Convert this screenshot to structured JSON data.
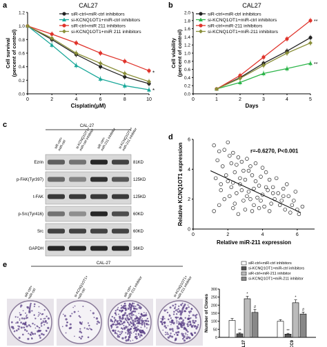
{
  "panels": {
    "a": {
      "letter": "a",
      "title": "CAL27"
    },
    "b": {
      "letter": "b",
      "title": "CAL27"
    },
    "c": {
      "letter": "c",
      "title": "CAL-27"
    },
    "d": {
      "letter": "d"
    },
    "e": {
      "letter": "e",
      "title": "CAL-27"
    }
  },
  "chart_data": [
    {
      "type": "line",
      "title": "CAL27",
      "xlabel": "Cisplatin(μM)",
      "ylabel": "Cell survival\n(percent of control)",
      "x": [
        0,
        2,
        4,
        6,
        8,
        10
      ],
      "xlim": [
        0,
        10
      ],
      "ylim": [
        0,
        1.2
      ],
      "xticks": [
        "0",
        "2",
        "4",
        "6",
        "8",
        "10"
      ],
      "yticks": [
        "0.0",
        "0.2",
        "0.4",
        "0.6",
        "0.8",
        "1.0",
        "1.2"
      ],
      "legend_position": "top-right",
      "series": [
        {
          "name": "siR-ctrl+miR-ctrl inhibitors",
          "color": "#222222",
          "marker": "circle",
          "values": [
            1.0,
            0.8,
            0.58,
            0.4,
            0.25,
            0.15
          ]
        },
        {
          "name": "si-KCNQ1OT1+miR-ctrl inhibitors",
          "color": "#1aa89a",
          "marker": "triangle",
          "values": [
            1.0,
            0.72,
            0.42,
            0.22,
            0.12,
            0.06
          ]
        },
        {
          "name": "siR-ctrl+miR 211 inhibitors",
          "color": "#e0342c",
          "marker": "circle",
          "values": [
            1.0,
            0.88,
            0.75,
            0.6,
            0.48,
            0.34
          ]
        },
        {
          "name": "si-KCNQ1OT1+miR 211 inhibitors",
          "color": "#8a8f3a",
          "marker": "diamond",
          "values": [
            1.0,
            0.82,
            0.6,
            0.45,
            0.3,
            0.18
          ]
        }
      ],
      "annotations": [
        "*",
        "*"
      ]
    },
    {
      "type": "line",
      "title": "CAL27",
      "xlabel": "Days",
      "ylabel": "Cell viability\n(percent of control)",
      "x": [
        1,
        2,
        3,
        4,
        5
      ],
      "xlim": [
        0,
        5
      ],
      "ylim": [
        0,
        2.0
      ],
      "xticks": [
        "0",
        "1",
        "2",
        "3",
        "4",
        "5"
      ],
      "yticks": [
        "0.0",
        "0.2",
        "0.4",
        "0.6",
        "0.8",
        "1.0",
        "1.2",
        "1.4",
        "1.6",
        "1.8",
        "2.0"
      ],
      "legend_position": "top-left",
      "series": [
        {
          "name": "siR-ctrl+miR-ctrl inhibitors",
          "color": "#222222",
          "marker": "circle",
          "values": [
            0.12,
            0.4,
            0.75,
            1.05,
            1.38
          ]
        },
        {
          "name": "si-KCNQ1OT1+miR-ctrl inhibitors",
          "color": "#2db54a",
          "marker": "triangle",
          "values": [
            0.12,
            0.28,
            0.5,
            0.62,
            0.75
          ]
        },
        {
          "name": "siR-ctrl+miR-211 inhibitors",
          "color": "#e0342c",
          "marker": "circle",
          "values": [
            0.12,
            0.45,
            0.9,
            1.35,
            1.8
          ]
        },
        {
          "name": "si-KCNQ1OT1+miR-211 inhibitors",
          "color": "#8a8f3a",
          "marker": "diamond",
          "values": [
            0.12,
            0.38,
            0.7,
            1.0,
            1.25
          ]
        }
      ],
      "annotations": [
        "**",
        "**"
      ]
    },
    {
      "type": "scatter",
      "xlabel": "Relative miR-211 expression",
      "ylabel": "Relative KCNQ1OT1 expression",
      "xlim": [
        0,
        7
      ],
      "ylim": [
        0,
        6
      ],
      "xticks": [
        "0",
        "2",
        "4",
        "6"
      ],
      "yticks": [
        "0",
        "2",
        "4",
        "6"
      ],
      "annotation": "r=-0.6270, P<0.001",
      "regression": [
        [
          1.0,
          3.9
        ],
        [
          6.2,
          1.1
        ]
      ],
      "points": [
        [
          1.2,
          5.6
        ],
        [
          1.5,
          5.2
        ],
        [
          1.8,
          5.3
        ],
        [
          2.1,
          4.9
        ],
        [
          2.3,
          5.1
        ],
        [
          2.6,
          4.8
        ],
        [
          2.0,
          5.8
        ],
        [
          1.4,
          4.6
        ],
        [
          1.7,
          4.2
        ],
        [
          2.2,
          4.4
        ],
        [
          2.5,
          4.3
        ],
        [
          2.8,
          4.5
        ],
        [
          3.1,
          4.7
        ],
        [
          3.3,
          4.2
        ],
        [
          2.9,
          3.9
        ],
        [
          2.4,
          3.8
        ],
        [
          1.9,
          3.6
        ],
        [
          1.3,
          3.4
        ],
        [
          1.6,
          3.0
        ],
        [
          2.0,
          3.2
        ],
        [
          2.3,
          3.1
        ],
        [
          2.7,
          3.4
        ],
        [
          3.0,
          3.3
        ],
        [
          3.4,
          3.6
        ],
        [
          3.6,
          3.2
        ],
        [
          3.9,
          3.5
        ],
        [
          4.2,
          3.8
        ],
        [
          4.4,
          3.3
        ],
        [
          3.8,
          2.9
        ],
        [
          3.5,
          2.7
        ],
        [
          3.2,
          2.5
        ],
        [
          2.8,
          2.6
        ],
        [
          2.5,
          2.4
        ],
        [
          2.1,
          2.2
        ],
        [
          1.8,
          2.0
        ],
        [
          1.5,
          1.6
        ],
        [
          1.2,
          1.2
        ],
        [
          2.4,
          1.7
        ],
        [
          2.9,
          1.9
        ],
        [
          3.3,
          2.0
        ],
        [
          3.7,
          2.1
        ],
        [
          4.0,
          2.3
        ],
        [
          4.3,
          2.6
        ],
        [
          4.6,
          2.8
        ],
        [
          4.9,
          2.4
        ],
        [
          5.2,
          2.7
        ],
        [
          5.5,
          2.2
        ],
        [
          5.8,
          1.9
        ],
        [
          4.7,
          2.0
        ],
        [
          4.5,
          1.7
        ],
        [
          4.1,
          1.5
        ],
        [
          3.8,
          1.4
        ],
        [
          3.4,
          1.2
        ],
        [
          3.0,
          1.3
        ],
        [
          2.6,
          1.0
        ],
        [
          5.0,
          1.6
        ],
        [
          5.3,
          1.3
        ],
        [
          5.6,
          1.1
        ],
        [
          6.0,
          1.3
        ],
        [
          6.3,
          1.5
        ],
        [
          5.9,
          2.5
        ],
        [
          5.4,
          3.0
        ],
        [
          4.8,
          3.4
        ],
        [
          4.0,
          4.1
        ],
        [
          3.6,
          4.4
        ],
        [
          3.2,
          3.9
        ],
        [
          2.7,
          3.0
        ],
        [
          2.2,
          2.8
        ],
        [
          1.6,
          2.6
        ],
        [
          4.2,
          2.8
        ],
        [
          3.9,
          1.9
        ],
        [
          5.1,
          1.9
        ],
        [
          6.1,
          1.0
        ],
        [
          5.7,
          1.6
        ],
        [
          4.4,
          1.2
        ],
        [
          3.5,
          1.6
        ],
        [
          2.3,
          1.4
        ],
        [
          3.1,
          2.2
        ],
        [
          4.6,
          2.4
        ],
        [
          5.2,
          2.2
        ]
      ]
    },
    {
      "type": "bar",
      "ylabel": "Number of Clones",
      "categories": [
        "CAL27",
        "SCC9"
      ],
      "ylim": [
        0,
        300
      ],
      "yticks": [
        "0",
        "50",
        "100",
        "150",
        "200",
        "250",
        "300"
      ],
      "legend_position": "top",
      "series": [
        {
          "name": "siR-ctrl+miR-ctrl inhibitors",
          "fill": "#ffffff",
          "values": [
            105,
            100
          ]
        },
        {
          "name": "si-KCNQ1OT1+miR-ctrl inhibitors",
          "fill": "#555555",
          "values": [
            22,
            20
          ]
        },
        {
          "name": "siR-ctrl+miR-211 inhibitor",
          "fill": "#bbbbbb",
          "values": [
            240,
            215
          ]
        },
        {
          "name": "si-KCNQ1OT1+miR-211 inhibitor",
          "fill": "#888888",
          "values": [
            155,
            145
          ]
        }
      ],
      "errors": [
        [
          12,
          10
        ],
        [
          6,
          5
        ],
        [
          15,
          18
        ],
        [
          18,
          12
        ]
      ],
      "annotations": [
        [
          "",
          "**",
          "*",
          "#"
        ],
        [
          "",
          "**",
          "*",
          "#"
        ]
      ]
    }
  ],
  "blot": {
    "lanes": [
      "siR-ctrl+\nmiR-ctrl",
      "si-KCNQ1OT1+\nmiR-ctrl inhibitor",
      "siR-ctrl+\nmiR-211 inhibitor",
      "si-KCNQ1OT1+\nmiR-211 inhibitor"
    ],
    "rows": [
      {
        "label": "Ezrin",
        "size": "81KD",
        "intensity": [
          0.55,
          0.45,
          0.85,
          0.7
        ]
      },
      {
        "label": "p-FAK(Tyr397)",
        "size": "125KD",
        "intensity": [
          0.5,
          0.35,
          0.8,
          0.6
        ]
      },
      {
        "label": "t-FAK",
        "size": "125KD",
        "intensity": [
          0.75,
          0.75,
          0.75,
          0.75
        ]
      },
      {
        "label": "p-Src(Tyr416)",
        "size": "60KD",
        "intensity": [
          0.45,
          0.3,
          0.85,
          0.65
        ]
      },
      {
        "label": "Src",
        "size": "60KD",
        "intensity": [
          0.7,
          0.7,
          0.7,
          0.7
        ]
      },
      {
        "label": "GAPDH",
        "size": "36KD",
        "intensity": [
          0.85,
          0.85,
          0.85,
          0.85
        ]
      }
    ]
  },
  "dishes": {
    "labels": [
      "siR-ctrl+\nmiR-ctrl",
      "si-KCNQ1OT1+\nmiR-ctrl",
      "siR-ctrl+\nmiR-211 inhibitor",
      "si-KCNQ1OT1+\nmiR-211 inhibitor"
    ],
    "density": [
      0.35,
      0.15,
      0.9,
      0.6
    ]
  }
}
